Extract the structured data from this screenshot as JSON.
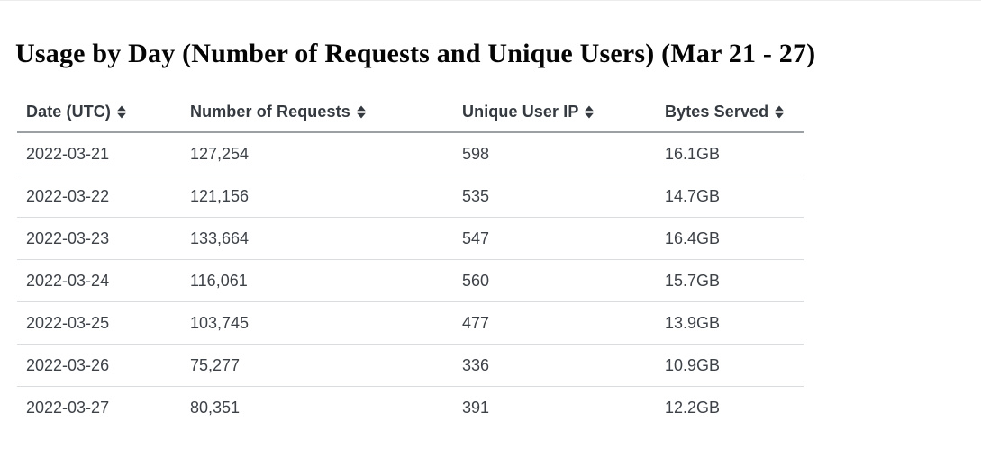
{
  "page": {
    "title": "Usage by Day (Number of Requests and Unique Users) (Mar 21 - 27)"
  },
  "table": {
    "columns": [
      {
        "label": "Date (UTC)",
        "sort_icon": "sort-both-icon"
      },
      {
        "label": "Number of Requests",
        "sort_icon": "sort-both-icon"
      },
      {
        "label": "Unique User IP",
        "sort_icon": "sort-both-icon"
      },
      {
        "label": "Bytes Served",
        "sort_icon": "sort-both-icon"
      }
    ],
    "rows": [
      [
        "2022-03-21",
        "127,254",
        "598",
        "16.1GB"
      ],
      [
        "2022-03-22",
        "121,156",
        "535",
        "14.7GB"
      ],
      [
        "2022-03-23",
        "133,664",
        "547",
        "16.4GB"
      ],
      [
        "2022-03-24",
        "116,061",
        "560",
        "15.7GB"
      ],
      [
        "2022-03-25",
        "103,745",
        "477",
        "13.9GB"
      ],
      [
        "2022-03-26",
        "75,277",
        "336",
        "10.9GB"
      ],
      [
        "2022-03-27",
        "80,351",
        "391",
        "12.2GB"
      ]
    ]
  },
  "colors": {
    "background": "#ffffff",
    "title_text": "#050505",
    "header_text": "#343a40",
    "body_text": "#3d4248",
    "header_border": "#9ba0a5",
    "row_border": "#dadde0"
  },
  "chart_data": {
    "type": "table",
    "title": "Usage by Day (Number of Requests and Unique Users) (Mar 21 - 27)",
    "columns": [
      "Date (UTC)",
      "Number of Requests",
      "Unique User IP",
      "Bytes Served"
    ],
    "rows": [
      [
        "2022-03-21",
        "127,254",
        "598",
        "16.1GB"
      ],
      [
        "2022-03-22",
        "121,156",
        "535",
        "14.7GB"
      ],
      [
        "2022-03-23",
        "133,664",
        "547",
        "16.4GB"
      ],
      [
        "2022-03-24",
        "116,061",
        "560",
        "15.7GB"
      ],
      [
        "2022-03-25",
        "103,745",
        "477",
        "13.9GB"
      ],
      [
        "2022-03-26",
        "75,277",
        "336",
        "10.9GB"
      ],
      [
        "2022-03-27",
        "80,351",
        "391",
        "12.2GB"
      ]
    ],
    "requests_values": [
      127254,
      121156,
      133664,
      116061,
      103745,
      75277,
      80351
    ],
    "unique_user_ip_values": [
      598,
      535,
      547,
      560,
      477,
      336,
      391
    ],
    "bytes_served_gb": [
      16.1,
      14.7,
      16.4,
      15.7,
      13.9,
      10.9,
      12.2
    ]
  }
}
